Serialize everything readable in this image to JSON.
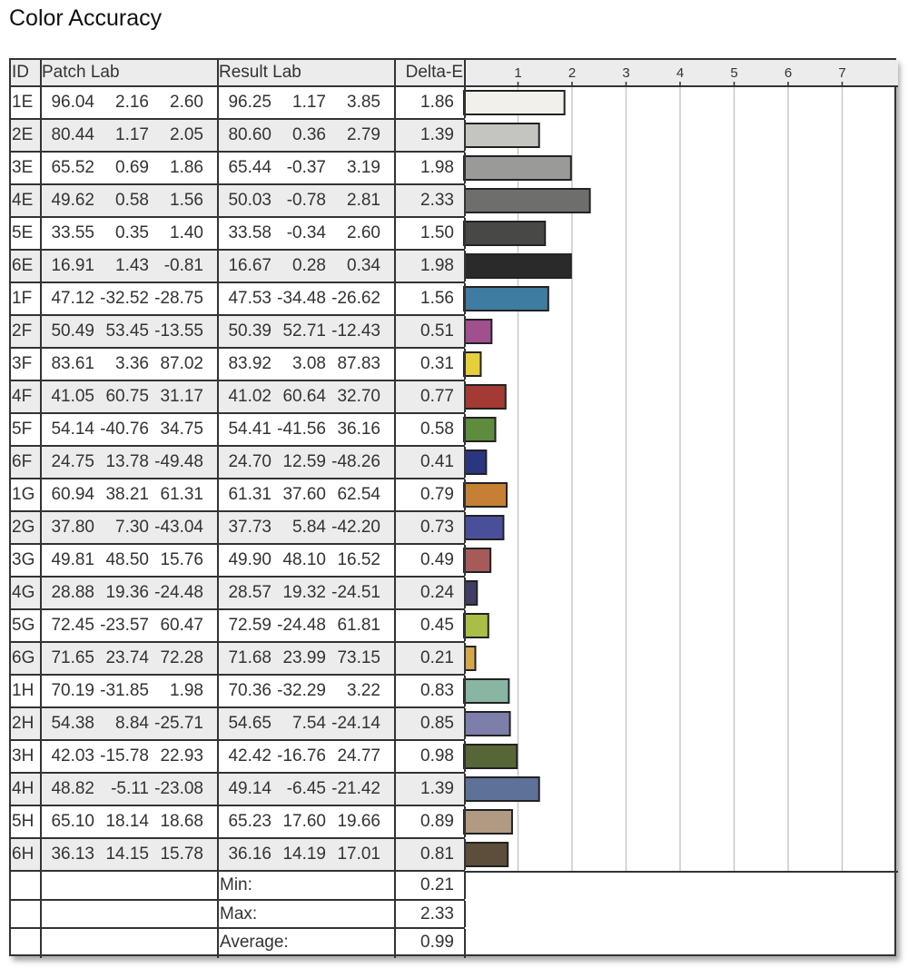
{
  "title": "Color Accuracy",
  "headers": {
    "id": "ID",
    "patch": "Patch Lab",
    "result": "Result Lab",
    "delta": "Delta-E"
  },
  "summary": [
    {
      "label": "Min:",
      "value": "0.21"
    },
    {
      "label": "Max:",
      "value": "2.33"
    },
    {
      "label": "Average:",
      "value": "0.99"
    }
  ],
  "chart_data": {
    "type": "bar",
    "orientation": "horizontal",
    "xlim": [
      0,
      8
    ],
    "ticks": [
      "1",
      "2",
      "3",
      "4",
      "5",
      "6",
      "7"
    ],
    "grid": true,
    "rows": [
      {
        "id": "1E",
        "patch": [
          "96.04",
          "2.16",
          "2.60"
        ],
        "result": [
          "96.25",
          "1.17",
          "3.85"
        ],
        "delta": 1.86,
        "color": "#f2f0ea"
      },
      {
        "id": "2E",
        "patch": [
          "80.44",
          "1.17",
          "2.05"
        ],
        "result": [
          "80.60",
          "0.36",
          "2.79"
        ],
        "delta": 1.39,
        "color": "#c4c4c0"
      },
      {
        "id": "3E",
        "patch": [
          "65.52",
          "0.69",
          "1.86"
        ],
        "result": [
          "65.44",
          "-0.37",
          "3.19"
        ],
        "delta": 1.98,
        "color": "#9a9a98"
      },
      {
        "id": "4E",
        "patch": [
          "49.62",
          "0.58",
          "1.56"
        ],
        "result": [
          "50.03",
          "-0.78",
          "2.81"
        ],
        "delta": 2.33,
        "color": "#6e6e6c"
      },
      {
        "id": "5E",
        "patch": [
          "33.55",
          "0.35",
          "1.40"
        ],
        "result": [
          "33.58",
          "-0.34",
          "2.60"
        ],
        "delta": 1.5,
        "color": "#484846"
      },
      {
        "id": "6E",
        "patch": [
          "16.91",
          "1.43",
          "-0.81"
        ],
        "result": [
          "16.67",
          "0.28",
          "0.34"
        ],
        "delta": 1.98,
        "color": "#2a2a2a"
      },
      {
        "id": "1F",
        "patch": [
          "47.12",
          "-32.52",
          "-28.75"
        ],
        "result": [
          "47.53",
          "-34.48",
          "-26.62"
        ],
        "delta": 1.56,
        "color": "#3f7ca2"
      },
      {
        "id": "2F",
        "patch": [
          "50.49",
          "53.45",
          "-13.55"
        ],
        "result": [
          "50.39",
          "52.71",
          "-12.43"
        ],
        "delta": 0.51,
        "color": "#a0508f"
      },
      {
        "id": "3F",
        "patch": [
          "83.61",
          "3.36",
          "87.02"
        ],
        "result": [
          "83.92",
          "3.08",
          "87.83"
        ],
        "delta": 0.31,
        "color": "#e5cf3a"
      },
      {
        "id": "4F",
        "patch": [
          "41.05",
          "60.75",
          "31.17"
        ],
        "result": [
          "41.02",
          "60.64",
          "32.70"
        ],
        "delta": 0.77,
        "color": "#a33a33"
      },
      {
        "id": "5F",
        "patch": [
          "54.14",
          "-40.76",
          "34.75"
        ],
        "result": [
          "54.41",
          "-41.56",
          "36.16"
        ],
        "delta": 0.58,
        "color": "#5e8c3e"
      },
      {
        "id": "6F",
        "patch": [
          "24.75",
          "13.78",
          "-49.48"
        ],
        "result": [
          "24.70",
          "12.59",
          "-48.26"
        ],
        "delta": 0.41,
        "color": "#2a3680"
      },
      {
        "id": "1G",
        "patch": [
          "60.94",
          "38.21",
          "61.31"
        ],
        "result": [
          "61.31",
          "37.60",
          "62.54"
        ],
        "delta": 0.79,
        "color": "#c58033"
      },
      {
        "id": "2G",
        "patch": [
          "37.80",
          "7.30",
          "-43.04"
        ],
        "result": [
          "37.73",
          "5.84",
          "-42.20"
        ],
        "delta": 0.73,
        "color": "#4a4f9a"
      },
      {
        "id": "3G",
        "patch": [
          "49.81",
          "48.50",
          "15.76"
        ],
        "result": [
          "49.90",
          "48.10",
          "16.52"
        ],
        "delta": 0.49,
        "color": "#a65a5a"
      },
      {
        "id": "4G",
        "patch": [
          "28.88",
          "19.36",
          "-24.48"
        ],
        "result": [
          "28.57",
          "19.32",
          "-24.51"
        ],
        "delta": 0.24,
        "color": "#3e3d63"
      },
      {
        "id": "5G",
        "patch": [
          "72.45",
          "-23.57",
          "60.47"
        ],
        "result": [
          "72.59",
          "-24.48",
          "61.81"
        ],
        "delta": 0.45,
        "color": "#a9be47"
      },
      {
        "id": "6G",
        "patch": [
          "71.65",
          "23.74",
          "72.28"
        ],
        "result": [
          "71.68",
          "23.99",
          "73.15"
        ],
        "delta": 0.21,
        "color": "#d4a74a"
      },
      {
        "id": "1H",
        "patch": [
          "70.19",
          "-31.85",
          "1.98"
        ],
        "result": [
          "70.36",
          "-32.29",
          "3.22"
        ],
        "delta": 0.83,
        "color": "#88b6a3"
      },
      {
        "id": "2H",
        "patch": [
          "54.38",
          "8.84",
          "-25.71"
        ],
        "result": [
          "54.65",
          "7.54",
          "-24.14"
        ],
        "delta": 0.85,
        "color": "#7e7eab"
      },
      {
        "id": "3H",
        "patch": [
          "42.03",
          "-15.78",
          "22.93"
        ],
        "result": [
          "42.42",
          "-16.76",
          "24.77"
        ],
        "delta": 0.98,
        "color": "#566637"
      },
      {
        "id": "4H",
        "patch": [
          "48.82",
          "-5.11",
          "-23.08"
        ],
        "result": [
          "49.14",
          "-6.45",
          "-21.42"
        ],
        "delta": 1.39,
        "color": "#5e7198"
      },
      {
        "id": "5H",
        "patch": [
          "65.10",
          "18.14",
          "18.68"
        ],
        "result": [
          "65.23",
          "17.60",
          "19.66"
        ],
        "delta": 0.89,
        "color": "#b09a82"
      },
      {
        "id": "6H",
        "patch": [
          "36.13",
          "14.15",
          "15.78"
        ],
        "result": [
          "36.16",
          "14.19",
          "17.01"
        ],
        "delta": 0.81,
        "color": "#5c4e3a"
      }
    ]
  }
}
